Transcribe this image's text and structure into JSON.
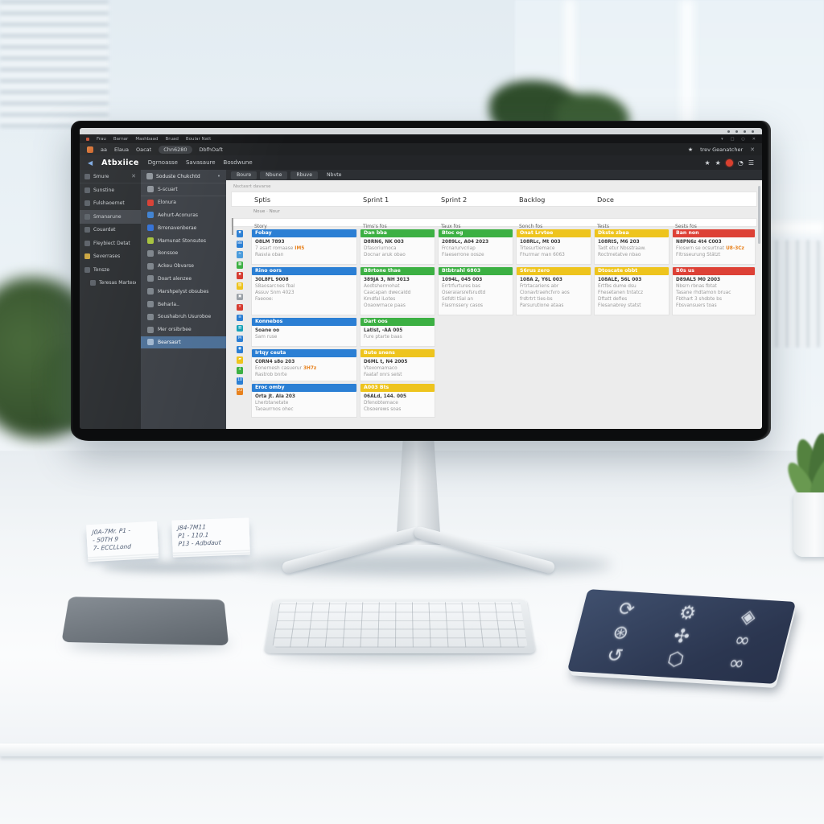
{
  "colors": {
    "bar_blue": "#2b7fd4",
    "bar_green": "#3cb043",
    "bar_yellow": "#eec41d",
    "bar_red": "#dd4136",
    "accent_orange": "#e8821e",
    "selected_blue": "#4c6f96"
  },
  "titlebar": {
    "controls": [
      "•",
      "•",
      "•",
      "•"
    ]
  },
  "menubar1": {
    "items": [
      "Frau",
      "Barnar",
      "Mashbaad",
      "Bruad",
      "Boular Natt"
    ],
    "tray": [
      "▾",
      "□",
      "○",
      "✕"
    ]
  },
  "menubar2": {
    "items": [
      "aa",
      "Elaua",
      "Oacat",
      "Chn6280",
      "DbfhOaft"
    ],
    "highlight_index": 3,
    "star": "★",
    "user": "trev Geanatcher",
    "close": "✕"
  },
  "appbar": {
    "back": "◀",
    "logo": "Atbxiice",
    "nav": [
      "Dgrnoasse",
      "Savasaure",
      "Bosdwune"
    ],
    "right_icons": [
      {
        "name": "star-icon",
        "glyph": "★"
      },
      {
        "name": "star-icon-2",
        "glyph": "★"
      },
      {
        "name": "notification-badge",
        "glyph": ""
      },
      {
        "name": "clock-icon",
        "glyph": "◔"
      },
      {
        "name": "menu-icon",
        "glyph": "☰"
      }
    ],
    "tabs": [
      "Boure",
      "Nbune",
      "Rbuve",
      "Nbvte"
    ]
  },
  "sidebar1": {
    "header": {
      "label": "Smure",
      "close": "✕"
    },
    "items": [
      {
        "label": "Sunstine",
        "color": "#565c63"
      },
      {
        "label": "Fulshaoernet",
        "color": "#565c63"
      },
      {
        "label": "Smanarune",
        "color": "#565c63",
        "active": true
      },
      {
        "label": "Couardat",
        "color": "#565c63"
      },
      {
        "label": "Fleybiect Detat",
        "color": "#565c63"
      },
      {
        "label": "Severrases",
        "color": "#c8a23a"
      },
      {
        "label": "Tonsze",
        "color": "#565c63"
      },
      {
        "label": "Teresas Martesel",
        "color": "#565c63",
        "indent": true
      }
    ]
  },
  "sidebar2": {
    "header": {
      "label": "Soduste Chukchtd",
      "pin": "•"
    },
    "items": [
      {
        "label": "S-scuart",
        "color": "#8d939a",
        "divider": true
      },
      {
        "label": "Elonura",
        "color": "#d63b30"
      },
      {
        "label": "Aehurt-Aconuras",
        "color": "#3b7fd0"
      },
      {
        "label": "Brrenavenberae",
        "color": "#2f6fd6"
      },
      {
        "label": "Mamunat Stonsutes",
        "color": "#a6c23a"
      },
      {
        "label": "Bonssoe",
        "color": "#7c838a"
      },
      {
        "label": "Ackeu Obvarse",
        "color": "#7c838a"
      },
      {
        "label": "Doart alenzee",
        "color": "#7c838a"
      },
      {
        "label": "Marshpelyst obsubes",
        "color": "#7c838a"
      },
      {
        "label": "Beharla..",
        "color": "#7c838a"
      },
      {
        "label": "Soushabruh Usuroboe",
        "color": "#7c838a"
      },
      {
        "label": "Mer orsibrbee",
        "color": "#7c838a"
      },
      {
        "label": "Bearsasrt",
        "color": "#9fb6cf",
        "selected": true
      }
    ]
  },
  "board": {
    "breadcrumb": "Nsctasrt davarse",
    "header_titles": [
      "Sptis",
      "Sprint 1",
      "Sprint 2",
      "Backlog",
      "Doce"
    ],
    "filter": "Noue · Nour",
    "table_headers": [
      "Story",
      "Tims's fos",
      "Taux fos",
      "Sonch fos",
      "Tests",
      "Sests fos"
    ],
    "icon_column": [
      {
        "color": "#2b7fd4",
        "glyph": "✖"
      },
      {
        "color": "#2b7fd4",
        "glyph": "88"
      },
      {
        "color": "#4a9bdc",
        "glyph": "≈"
      },
      {
        "color": "#3cb043",
        "glyph": "▦"
      },
      {
        "color": "#d63b30",
        "glyph": "✖"
      },
      {
        "color": "#eec41d",
        "glyph": "▨"
      },
      {
        "color": "#9aa0a6",
        "glyph": "▣"
      },
      {
        "color": "#d63b30",
        "glyph": "✕"
      },
      {
        "color": "#2b7fd4",
        "glyph": "≡"
      },
      {
        "color": "#17a2b8",
        "glyph": "▥"
      },
      {
        "color": "#2b7fd4",
        "glyph": "M"
      },
      {
        "color": "#2b7fd4",
        "glyph": "◉"
      },
      {
        "color": "#eec41d",
        "glyph": "▰"
      },
      {
        "color": "#3cb043",
        "glyph": "4"
      },
      {
        "color": "#2b7fd4",
        "glyph": "10"
      },
      {
        "color": "#e8821e",
        "glyph": "23"
      }
    ],
    "columns": [
      {
        "cards": [
          {
            "bar": "Fobay",
            "color": "blue",
            "lines": [
              {
                "t": "O8LM 7893"
              },
              {
                "t": "7 asart romaase",
                "a": "IM5"
              },
              {
                "t": "Rasvia oban"
              }
            ]
          },
          {
            "bar": "Rino oors",
            "color": "blue",
            "lines": [
              {
                "t": "30L8FL 9008"
              },
              {
                "t": "S8aosarcnes fbal"
              },
              {
                "t": "Assuv Snm 4023"
              },
              {
                "t": "Faeooe:"
              }
            ]
          },
          {
            "bar": "Konnebos",
            "color": "blue",
            "lines": [
              {
                "t": "Soane oo"
              },
              {
                "t": "Sam ruse"
              }
            ]
          },
          {
            "bar": "Irtqy ceuta",
            "color": "blue",
            "lines": [
              {
                "t": "C0RN4 s8o 203"
              },
              {
                "t": "Eonernesh casuerur",
                "a": "3H7z"
              },
              {
                "t": "Rastrob bnrte"
              }
            ]
          },
          {
            "bar": "Eroc omby",
            "color": "blue",
            "lines": [
              {
                "t": "Orta jt. Ala 203"
              },
              {
                "t": "Lherbtanetate"
              },
              {
                "t": "Taoaurrnos ohec"
              }
            ]
          }
        ]
      },
      {
        "cards": [
          {
            "bar": "Dan bba",
            "color": "green",
            "lines": [
              {
                "t": "D8RN6, NK 003"
              },
              {
                "t": "Dfasoriurnoca"
              },
              {
                "t": "Docnar aruk obao"
              }
            ]
          },
          {
            "bar": "B8rtone thae",
            "color": "green",
            "lines": [
              {
                "t": "389JA 3, NH 3013"
              },
              {
                "t": "Aodtshermohat"
              },
              {
                "t": "Caacapan dwecaldd"
              },
              {
                "t": "Kmdfal iLotes"
              },
              {
                "t": "Ooaowrnace paas"
              }
            ]
          },
          {
            "bar": "Dart oos",
            "color": "green",
            "lines": [
              {
                "t": "Latlst, -AA 005"
              },
              {
                "t": "Fure ptarte baas"
              }
            ]
          },
          {
            "bar": "Bute snens",
            "color": "yellow",
            "lines": [
              {
                "t": "D6ML t, N4 2005"
              },
              {
                "t": "Vtexomamaco"
              },
              {
                "t": "Faataf onrs selst"
              }
            ]
          },
          {
            "bar": "A003 Bts",
            "color": "yellow",
            "lines": [
              {
                "t": "06ALd, 144. 005"
              },
              {
                "t": "Dfenobtemace"
              },
              {
                "t": "Cbsoerews soas"
              }
            ]
          }
        ]
      },
      {
        "cards": [
          {
            "bar": "Btoc og",
            "color": "green",
            "lines": [
              {
                "t": "2089Lc, A04 2023"
              },
              {
                "t": "Frcnarurvcriap"
              },
              {
                "t": "Flaeserrone oosze"
              }
            ]
          },
          {
            "bar": "Btbtrahl 6803",
            "color": "green",
            "lines": [
              {
                "t": "1094L, 045 003"
              },
              {
                "t": "Errtrfurtures bas"
              },
              {
                "t": "Oseraiarsrefsrudtd"
              },
              {
                "t": "Sdfdtl tSal an"
              },
              {
                "t": "Flasrnssery casos"
              }
            ]
          }
        ]
      },
      {
        "cards": [
          {
            "bar": "Onat Lrvtee",
            "color": "yellow",
            "lines": [
              {
                "t": "108RLc, Mt 003"
              },
              {
                "t": "Trtesurtiemace"
              },
              {
                "t": "Fhurmar man 6063"
              }
            ]
          },
          {
            "bar": "S6rus zero",
            "color": "yellow",
            "lines": [
              {
                "t": "108A 2, Y6L 003"
              },
              {
                "t": "Frtrtacariens abr"
              },
              {
                "t": "Clonavtraehcfvro aos"
              },
              {
                "t": "frdtrtrt ties-bs"
              },
              {
                "t": "Parsurutione ataas"
              }
            ]
          }
        ]
      },
      {
        "cards": [
          {
            "bar": "Dkste zbea",
            "color": "yellow",
            "lines": [
              {
                "t": "108RtS, M6 203"
              },
              {
                "t": "Tadt etur Nbsstraaw."
              },
              {
                "t": "Roctmetatve nbao"
              }
            ]
          },
          {
            "bar": "Dtoscate obbt",
            "color": "yellow",
            "lines": [
              {
                "t": "108ALE, 56L 003"
              },
              {
                "t": "Ertfbs dume dsu"
              },
              {
                "t": "Fhesetanen tntatcz"
              },
              {
                "t": "Dftatt defies"
              },
              {
                "t": "Flesanabrey statst"
              }
            ]
          }
        ]
      },
      {
        "cards": [
          {
            "bar": "Ban non",
            "color": "red",
            "lines": [
              {
                "t": "N8PN6z 4t4 C003"
              },
              {
                "t": "Floswrn se ocsurtnat",
                "a": "U8-3Cz"
              },
              {
                "t": "Fltrsseurung Stätzt"
              }
            ]
          },
          {
            "bar": "B0s us",
            "color": "red",
            "lines": [
              {
                "t": "D89AL5 M0 2003"
              },
              {
                "t": "Nbsrn rbnas fbtat"
              },
              {
                "t": "Tasane rhdtamon bruac"
              },
              {
                "t": "Fbthart 3 shdbte bs"
              },
              {
                "t": "Fbsvansuers toas"
              }
            ]
          }
        ]
      }
    ]
  },
  "mousepad": {
    "icons": [
      {
        "name": "swoosh-icon",
        "glyph": "⟳"
      },
      {
        "name": "gear-icon",
        "glyph": "⚙"
      },
      {
        "name": "kite-icon",
        "glyph": "◈"
      },
      {
        "name": "ring-gear-icon",
        "glyph": "⊛"
      },
      {
        "name": "clover-icon",
        "glyph": "✣"
      },
      {
        "name": "infinity-icon",
        "glyph": "∞"
      },
      {
        "name": "loop-arrow-icon",
        "glyph": "↺"
      },
      {
        "name": "hexagon-icon",
        "glyph": "⬡"
      },
      {
        "name": "infinity-icon-2",
        "glyph": "∞"
      }
    ]
  },
  "notes": [
    {
      "lines": [
        "J0A-7Mr. P1 -",
        "- 50TH 9",
        "7- ECCLLond"
      ]
    },
    {
      "lines": [
        "J84-7M11",
        "P1 - 110.1",
        "P13 - Adbdaut"
      ]
    }
  ]
}
